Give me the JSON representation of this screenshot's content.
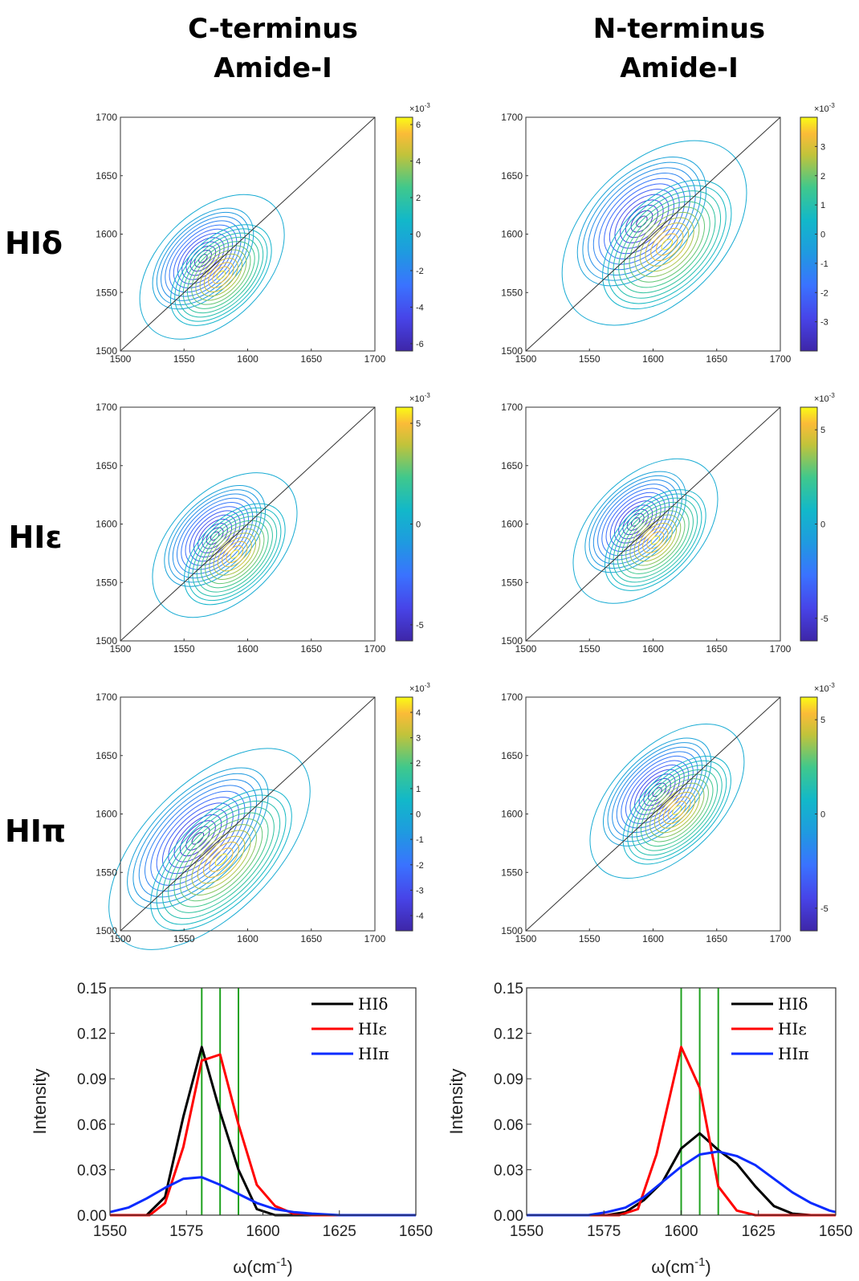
{
  "column_titles": [
    {
      "line1": "C-terminus",
      "line2": "Amide-I"
    },
    {
      "line1": "N-terminus",
      "line2": "Amide-I"
    }
  ],
  "row_labels": [
    "HIδ",
    "HIε",
    "HIπ"
  ],
  "chart_data": [
    {
      "type": "heatmap",
      "panel": "HIδ C-terminus",
      "xlim": [
        1500,
        1700
      ],
      "ylim": [
        1500,
        1700
      ],
      "xticks": [
        1500,
        1550,
        1600,
        1650,
        1700
      ],
      "yticks": [
        1500,
        1550,
        1600,
        1650,
        1700
      ],
      "center": [
        1572,
        1572
      ],
      "lobe_offset": 10,
      "sigma_x": 22,
      "sigma_y": 14,
      "diagonal": true,
      "colorbar": {
        "exponent_label": "×10",
        "exponent": "-3",
        "min": -6.4,
        "max": 6.4,
        "ticks": [
          -6,
          -4,
          -2,
          0,
          2,
          4,
          6
        ]
      }
    },
    {
      "type": "heatmap",
      "panel": "HIδ N-terminus",
      "xlim": [
        1500,
        1700
      ],
      "ylim": [
        1500,
        1700
      ],
      "xticks": [
        1500,
        1550,
        1600,
        1650,
        1700
      ],
      "yticks": [
        1500,
        1550,
        1600,
        1650,
        1700
      ],
      "center": [
        1601,
        1601
      ],
      "lobe_offset": 14,
      "sigma_x": 28,
      "sigma_y": 18,
      "diagonal": true,
      "colorbar": {
        "exponent_label": "×10",
        "exponent": "-3",
        "min": -4,
        "max": 4,
        "ticks": [
          -3,
          -2,
          -1,
          0,
          1,
          2,
          3
        ]
      }
    },
    {
      "type": "heatmap",
      "panel": "HIε C-terminus",
      "xlim": [
        1500,
        1700
      ],
      "ylim": [
        1500,
        1700
      ],
      "xticks": [
        1500,
        1550,
        1600,
        1650,
        1700
      ],
      "yticks": [
        1500,
        1550,
        1600,
        1650,
        1700
      ],
      "center": [
        1582,
        1582
      ],
      "lobe_offset": 11,
      "sigma_x": 22,
      "sigma_y": 14,
      "diagonal": true,
      "colorbar": {
        "exponent_label": "×10",
        "exponent": "-3",
        "min": -5.8,
        "max": 5.8,
        "ticks": [
          -5,
          0,
          5
        ]
      }
    },
    {
      "type": "heatmap",
      "panel": "HIε N-terminus",
      "xlim": [
        1500,
        1700
      ],
      "ylim": [
        1500,
        1700
      ],
      "xticks": [
        1500,
        1550,
        1600,
        1650,
        1700
      ],
      "yticks": [
        1500,
        1550,
        1600,
        1650,
        1700
      ],
      "center": [
        1594,
        1594
      ],
      "lobe_offset": 11,
      "sigma_x": 22,
      "sigma_y": 14,
      "diagonal": true,
      "colorbar": {
        "exponent_label": "×10",
        "exponent": "-3",
        "min": -6.2,
        "max": 6.2,
        "ticks": [
          -5,
          0,
          5
        ]
      }
    },
    {
      "type": "heatmap",
      "panel": "HIπ C-terminus",
      "xlim": [
        1500,
        1700
      ],
      "ylim": [
        1500,
        1700
      ],
      "xticks": [
        1500,
        1550,
        1600,
        1650,
        1700
      ],
      "yticks": [
        1500,
        1550,
        1600,
        1650,
        1700
      ],
      "center": [
        1570,
        1570
      ],
      "lobe_offset": 13,
      "sigma_x": 32,
      "sigma_y": 17,
      "diagonal": true,
      "colorbar": {
        "exponent_label": "×10",
        "exponent": "-3",
        "min": -4.6,
        "max": 4.6,
        "ticks": [
          -4,
          -3,
          -2,
          -1,
          0,
          1,
          2,
          3,
          4
        ]
      }
    },
    {
      "type": "heatmap",
      "panel": "HIπ N-terminus",
      "xlim": [
        1500,
        1700
      ],
      "ylim": [
        1500,
        1700
      ],
      "xticks": [
        1500,
        1550,
        1600,
        1650,
        1700
      ],
      "yticks": [
        1500,
        1550,
        1600,
        1650,
        1700
      ],
      "center": [
        1611,
        1611
      ],
      "lobe_offset": 11,
      "sigma_x": 24,
      "sigma_y": 14,
      "diagonal": true,
      "colorbar": {
        "exponent_label": "×10",
        "exponent": "-3",
        "min": -6.2,
        "max": 6.2,
        "ticks": [
          -5,
          0,
          5
        ]
      }
    },
    {
      "type": "line",
      "panel": "C-terminus spectrum",
      "xlabel": "ω(cm-1)",
      "xlabel_base": "ω(cm",
      "xlabel_sup": "-1",
      "xlabel_close": ")",
      "ylabel": "Intensity",
      "xlim": [
        1550,
        1650
      ],
      "ylim": [
        0,
        0.15
      ],
      "xticks": [
        1550,
        1575,
        1600,
        1625,
        1650
      ],
      "yticks": [
        "0.00",
        "0.03",
        "0.06",
        "0.09",
        "0.12",
        "0.15"
      ],
      "vlines": [
        1580,
        1586,
        1592
      ],
      "series": [
        {
          "name": "HIδ",
          "color": "#000000",
          "points": [
            [
              1550,
              0
            ],
            [
              1562,
              0
            ],
            [
              1568,
              0.012
            ],
            [
              1574,
              0.065
            ],
            [
              1580,
              0.111
            ],
            [
              1586,
              0.068
            ],
            [
              1592,
              0.03
            ],
            [
              1598,
              0.004
            ],
            [
              1604,
              0
            ],
            [
              1650,
              0
            ]
          ]
        },
        {
          "name": "HIε",
          "color": "#ff0000",
          "points": [
            [
              1550,
              0
            ],
            [
              1563,
              0
            ],
            [
              1568,
              0.008
            ],
            [
              1574,
              0.045
            ],
            [
              1580,
              0.102
            ],
            [
              1586,
              0.106
            ],
            [
              1592,
              0.06
            ],
            [
              1598,
              0.02
            ],
            [
              1604,
              0.006
            ],
            [
              1610,
              0.001
            ],
            [
              1616,
              0
            ],
            [
              1650,
              0
            ]
          ]
        },
        {
          "name": "HIπ",
          "color": "#0a2bff",
          "points": [
            [
              1550,
              0.002
            ],
            [
              1556,
              0.005
            ],
            [
              1562,
              0.011
            ],
            [
              1568,
              0.018
            ],
            [
              1574,
              0.024
            ],
            [
              1580,
              0.025
            ],
            [
              1586,
              0.02
            ],
            [
              1592,
              0.014
            ],
            [
              1598,
              0.008
            ],
            [
              1604,
              0.004
            ],
            [
              1610,
              0.002
            ],
            [
              1616,
              0.001
            ],
            [
              1625,
              0
            ],
            [
              1650,
              0
            ]
          ]
        }
      ]
    },
    {
      "type": "line",
      "panel": "N-terminus spectrum",
      "xlabel": "ω(cm-1)",
      "xlabel_base": "ω(cm",
      "xlabel_sup": "-1",
      "xlabel_close": ")",
      "ylabel": "Intensity",
      "xlim": [
        1550,
        1650
      ],
      "ylim": [
        0,
        0.15
      ],
      "xticks": [
        1550,
        1575,
        1600,
        1625,
        1650
      ],
      "yticks": [
        "0.00",
        "0.03",
        "0.06",
        "0.09",
        "0.12",
        "0.15"
      ],
      "vlines": [
        1600,
        1606,
        1612
      ],
      "series": [
        {
          "name": "HIδ",
          "color": "#000000",
          "points": [
            [
              1550,
              0
            ],
            [
              1576,
              0
            ],
            [
              1582,
              0.002
            ],
            [
              1588,
              0.01
            ],
            [
              1594,
              0.022
            ],
            [
              1600,
              0.044
            ],
            [
              1606,
              0.054
            ],
            [
              1612,
              0.043
            ],
            [
              1618,
              0.034
            ],
            [
              1624,
              0.019
            ],
            [
              1630,
              0.006
            ],
            [
              1636,
              0.001
            ],
            [
              1642,
              0
            ],
            [
              1650,
              0
            ]
          ]
        },
        {
          "name": "HIε",
          "color": "#ff0000",
          "points": [
            [
              1550,
              0
            ],
            [
              1580,
              0
            ],
            [
              1586,
              0.004
            ],
            [
              1592,
              0.04
            ],
            [
              1600,
              0.111
            ],
            [
              1606,
              0.084
            ],
            [
              1612,
              0.019
            ],
            [
              1618,
              0.003
            ],
            [
              1624,
              0
            ],
            [
              1650,
              0
            ]
          ]
        },
        {
          "name": "HIπ",
          "color": "#0a2bff",
          "points": [
            [
              1550,
              0
            ],
            [
              1570,
              0
            ],
            [
              1576,
              0.002
            ],
            [
              1582,
              0.005
            ],
            [
              1588,
              0.012
            ],
            [
              1594,
              0.022
            ],
            [
              1600,
              0.032
            ],
            [
              1606,
              0.04
            ],
            [
              1612,
              0.042
            ],
            [
              1618,
              0.039
            ],
            [
              1624,
              0.033
            ],
            [
              1630,
              0.024
            ],
            [
              1636,
              0.015
            ],
            [
              1642,
              0.008
            ],
            [
              1648,
              0.003
            ],
            [
              1650,
              0.002
            ]
          ]
        }
      ]
    }
  ]
}
